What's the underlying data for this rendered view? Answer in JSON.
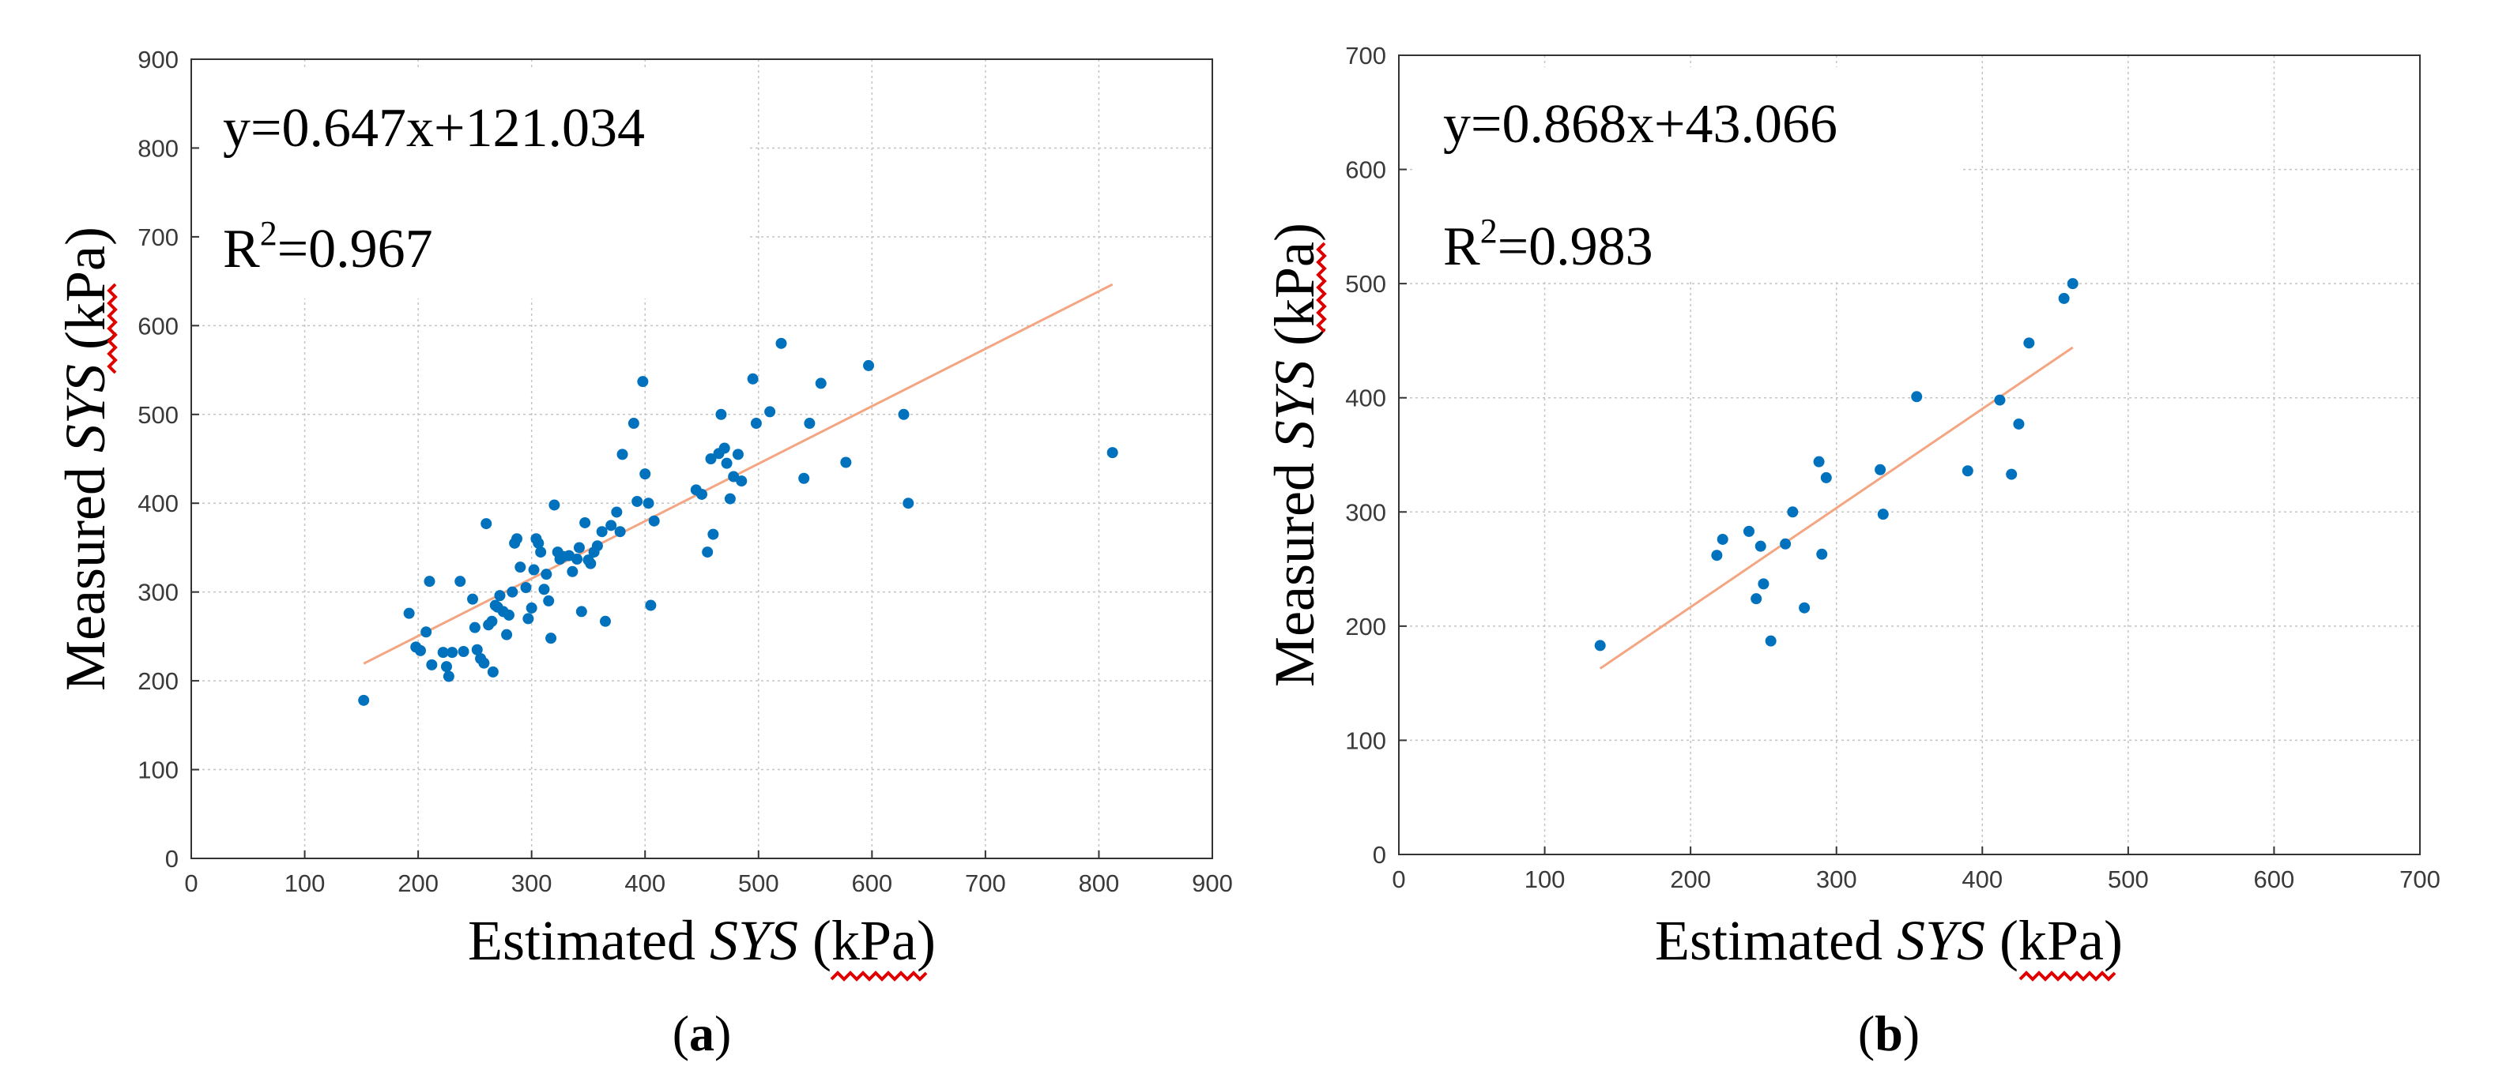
{
  "chart_data": [
    {
      "type": "scatter",
      "panel_label": "a",
      "xlabel": {
        "prefix": "Estimated",
        "var": "SYS",
        "unit": "(kPa)"
      },
      "ylabel": {
        "prefix": "Measured",
        "var": "SYS",
        "unit": "(kPa)"
      },
      "xlim": [
        0,
        900
      ],
      "ylim": [
        0,
        900
      ],
      "xticks": [
        0,
        100,
        200,
        300,
        400,
        500,
        600,
        700,
        800,
        900
      ],
      "yticks": [
        0,
        100,
        200,
        300,
        400,
        500,
        600,
        700,
        800,
        900
      ],
      "grid": true,
      "equation": "y=0.647x+121.034",
      "r2": {
        "base": "R",
        "sup": "2",
        "value": "=0.967"
      },
      "fit": {
        "slope": 0.647,
        "intercept": 121.034,
        "x_range": [
          152,
          812
        ]
      },
      "series": [
        {
          "name": "data",
          "color": "#0072bd",
          "points": [
            [
              152,
              178
            ],
            [
              192,
              276
            ],
            [
              198,
              238
            ],
            [
              202,
              234
            ],
            [
              207,
              255
            ],
            [
              210,
              312
            ],
            [
              212,
              218
            ],
            [
              222,
              232
            ],
            [
              225,
              216
            ],
            [
              227,
              205
            ],
            [
              230,
              232
            ],
            [
              237,
              312
            ],
            [
              240,
              233
            ],
            [
              248,
              292
            ],
            [
              250,
              260
            ],
            [
              252,
              235
            ],
            [
              255,
              225
            ],
            [
              258,
              220
            ],
            [
              260,
              377
            ],
            [
              262,
              263
            ],
            [
              265,
              267
            ],
            [
              266,
              210
            ],
            [
              268,
              285
            ],
            [
              270,
              283
            ],
            [
              272,
              296
            ],
            [
              275,
              278
            ],
            [
              278,
              252
            ],
            [
              280,
              274
            ],
            [
              283,
              300
            ],
            [
              285,
              355
            ],
            [
              287,
              360
            ],
            [
              290,
              328
            ],
            [
              295,
              305
            ],
            [
              297,
              270
            ],
            [
              300,
              282
            ],
            [
              302,
              325
            ],
            [
              304,
              360
            ],
            [
              306,
              355
            ],
            [
              308,
              345
            ],
            [
              311,
              303
            ],
            [
              313,
              320
            ],
            [
              315,
              290
            ],
            [
              317,
              248
            ],
            [
              320,
              398
            ],
            [
              323,
              345
            ],
            [
              325,
              337
            ],
            [
              328,
              340
            ],
            [
              333,
              341
            ],
            [
              336,
              323
            ],
            [
              340,
              337
            ],
            [
              342,
              350
            ],
            [
              344,
              278
            ],
            [
              347,
              378
            ],
            [
              350,
              336
            ],
            [
              352,
              332
            ],
            [
              355,
              345
            ],
            [
              358,
              352
            ],
            [
              362,
              368
            ],
            [
              365,
              267
            ],
            [
              370,
              375
            ],
            [
              375,
              390
            ],
            [
              378,
              368
            ],
            [
              380,
              455
            ],
            [
              390,
              490
            ],
            [
              393,
              402
            ],
            [
              398,
              537
            ],
            [
              400,
              433
            ],
            [
              403,
              400
            ],
            [
              405,
              285
            ],
            [
              408,
              380
            ],
            [
              445,
              415
            ],
            [
              450,
              410
            ],
            [
              455,
              345
            ],
            [
              458,
              450
            ],
            [
              460,
              365
            ],
            [
              465,
              456
            ],
            [
              467,
              500
            ],
            [
              470,
              462
            ],
            [
              472,
              445
            ],
            [
              475,
              405
            ],
            [
              478,
              430
            ],
            [
              482,
              455
            ],
            [
              485,
              425
            ],
            [
              495,
              540
            ],
            [
              498,
              490
            ],
            [
              510,
              503
            ],
            [
              520,
              580
            ],
            [
              540,
              428
            ],
            [
              545,
              490
            ],
            [
              555,
              535
            ],
            [
              577,
              446
            ],
            [
              597,
              555
            ],
            [
              628,
              500
            ],
            [
              632,
              400
            ],
            [
              812,
              457
            ]
          ]
        }
      ]
    },
    {
      "type": "scatter",
      "panel_label": "b",
      "xlabel": {
        "prefix": "Estimated",
        "var": "SYS",
        "unit": "(kPa)"
      },
      "ylabel": {
        "prefix": "Measured",
        "var": "SYS",
        "unit": "(kPa)"
      },
      "xlim": [
        0,
        700
      ],
      "ylim": [
        0,
        700
      ],
      "xticks": [
        0,
        100,
        200,
        300,
        400,
        500,
        600,
        700
      ],
      "yticks": [
        0,
        100,
        200,
        300,
        400,
        500,
        600,
        700
      ],
      "grid": true,
      "equation": "y=0.868x+43.066",
      "r2": {
        "base": "R",
        "sup": "2",
        "value": "=0.983"
      },
      "fit": {
        "slope": 0.868,
        "intercept": 43.066,
        "x_range": [
          138,
          462
        ]
      },
      "series": [
        {
          "name": "data",
          "color": "#0072bd",
          "points": [
            [
              138,
              183
            ],
            [
              218,
              262
            ],
            [
              222,
              276
            ],
            [
              240,
              283
            ],
            [
              245,
              224
            ],
            [
              248,
              270
            ],
            [
              250,
              237
            ],
            [
              255,
              187
            ],
            [
              265,
              272
            ],
            [
              270,
              300
            ],
            [
              278,
              216
            ],
            [
              288,
              344
            ],
            [
              290,
              263
            ],
            [
              293,
              330
            ],
            [
              330,
              337
            ],
            [
              332,
              298
            ],
            [
              355,
              401
            ],
            [
              390,
              336
            ],
            [
              412,
              398
            ],
            [
              420,
              333
            ],
            [
              425,
              377
            ],
            [
              432,
              448
            ],
            [
              456,
              487
            ],
            [
              462,
              500
            ]
          ]
        }
      ]
    }
  ]
}
